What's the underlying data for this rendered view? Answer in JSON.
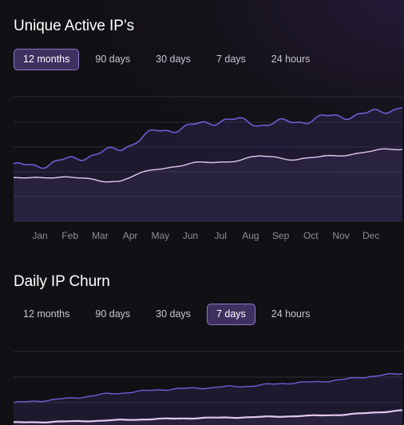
{
  "sections": [
    {
      "title": "Unique Active IP’s",
      "tabs": [
        {
          "label": "12 months",
          "active": true
        },
        {
          "label": "90 days",
          "active": false
        },
        {
          "label": "30 days",
          "active": false
        },
        {
          "label": "7 days",
          "active": false
        },
        {
          "label": "24 hours",
          "active": false
        }
      ]
    },
    {
      "title": "Daily IP Churn",
      "tabs": [
        {
          "label": "12 months",
          "active": false
        },
        {
          "label": "90 days",
          "active": false
        },
        {
          "label": "30 days",
          "active": false
        },
        {
          "label": "7 days",
          "active": true
        },
        {
          "label": "24 hours",
          "active": false
        }
      ]
    }
  ],
  "colors": {
    "series_primary": "#6f5cd6",
    "series_secondary": "#e2c9ee",
    "active_tab_bg": "#3e3160",
    "active_tab_border": "#8a78c7"
  },
  "chart_data": [
    {
      "type": "area",
      "categories": [
        "Jan",
        "Feb",
        "Mar",
        "Apr",
        "May",
        "Jun",
        "Jul",
        "Aug",
        "Sep",
        "Oct",
        "Nov",
        "Dec"
      ],
      "series": [
        {
          "values": [
            2.2,
            2.3,
            2.6,
            2.9,
            3.6,
            3.8,
            4.1,
            3.9,
            4.0,
            4.2,
            4.3,
            4.6
          ]
        },
        {
          "values": [
            1.7,
            1.8,
            1.7,
            1.6,
            2.1,
            2.3,
            2.4,
            2.6,
            2.5,
            2.6,
            2.8,
            2.9
          ]
        }
      ],
      "ylim": [
        0,
        5
      ],
      "grid": true
    },
    {
      "type": "area",
      "series": [
        {
          "values": [
            0.9,
            1.0,
            1.1,
            1.25,
            1.35,
            1.45,
            1.5,
            1.55,
            1.6,
            1.7,
            1.75,
            1.85,
            2.0,
            2.1
          ]
        },
        {
          "values": [
            0.1,
            0.12,
            0.15,
            0.18,
            0.22,
            0.25,
            0.28,
            0.3,
            0.32,
            0.35,
            0.38,
            0.42,
            0.5,
            0.6
          ]
        }
      ],
      "grid": true
    }
  ]
}
